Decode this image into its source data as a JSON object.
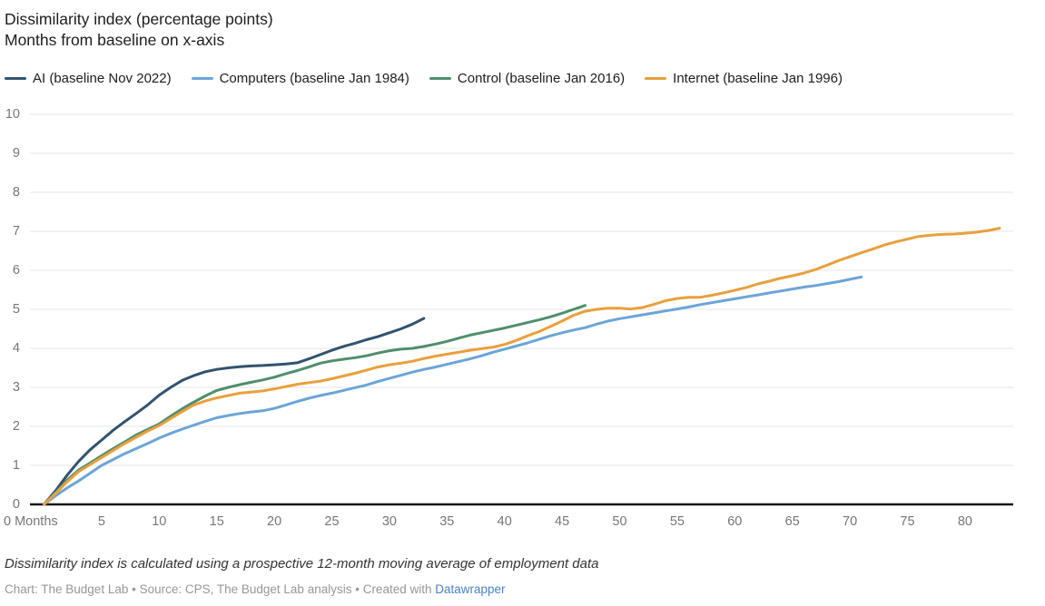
{
  "header": {
    "title": "Dissimilarity index (percentage points)",
    "subtitle": "Months from baseline on x-axis"
  },
  "footer": {
    "note": "Dissimilarity index is calculated using a prospective 12-month moving average of employment data",
    "credit_prefix": "Chart: The Budget Lab • Source: CPS, The Budget Lab analysis • Created with ",
    "credit_link": "Datawrapper"
  },
  "colors": {
    "axis": "#161616",
    "grid": "#e4e4e4",
    "tick_label": "#767676",
    "link": "#4a82c4"
  },
  "chart_data": {
    "type": "line",
    "title": "Dissimilarity index (percentage points)",
    "subtitle": "Months from baseline on x-axis",
    "xlabel": "Months from baseline",
    "ylabel": "Dissimilarity index (percentage points)",
    "ylim": [
      0,
      10
    ],
    "xlim": [
      0,
      84
    ],
    "yticks": [
      0,
      1,
      2,
      3,
      4,
      5,
      6,
      7,
      8,
      9,
      10
    ],
    "xticks": [
      0,
      5,
      10,
      15,
      20,
      25,
      30,
      35,
      40,
      45,
      50,
      55,
      60,
      65,
      70,
      75,
      80
    ],
    "xtick_zero_label": "0 Months",
    "grid": "horizontal",
    "legend_position": "top",
    "x_unit": "months from baseline; each series' values are at consecutive months 0,1,2,...",
    "series": [
      {
        "name": "AI (baseline Nov 2022)",
        "key": "ai",
        "color": "#31536e",
        "values": [
          0,
          0.35,
          0.75,
          1.1,
          1.4,
          1.65,
          1.9,
          2.12,
          2.33,
          2.55,
          2.8,
          3.0,
          3.18,
          3.3,
          3.4,
          3.46,
          3.5,
          3.53,
          3.55,
          3.56,
          3.58,
          3.6,
          3.63,
          3.73,
          3.84,
          3.95,
          4.05,
          4.13,
          4.22,
          4.3,
          4.4,
          4.5,
          4.62,
          4.77
        ]
      },
      {
        "name": "Computers (baseline Jan 1984)",
        "key": "computers",
        "color": "#6ba5d7",
        "values": [
          0,
          0.22,
          0.42,
          0.6,
          0.8,
          1.0,
          1.15,
          1.3,
          1.43,
          1.56,
          1.7,
          1.82,
          1.93,
          2.03,
          2.13,
          2.22,
          2.28,
          2.33,
          2.37,
          2.4,
          2.46,
          2.55,
          2.64,
          2.72,
          2.79,
          2.85,
          2.92,
          2.99,
          3.06,
          3.15,
          3.23,
          3.31,
          3.39,
          3.46,
          3.52,
          3.59,
          3.66,
          3.73,
          3.81,
          3.9,
          3.98,
          4.06,
          4.14,
          4.23,
          4.32,
          4.4,
          4.47,
          4.53,
          4.62,
          4.7,
          4.76,
          4.81,
          4.86,
          4.91,
          4.96,
          5.01,
          5.06,
          5.12,
          5.17,
          5.22,
          5.27,
          5.32,
          5.37,
          5.42,
          5.47,
          5.52,
          5.57,
          5.61,
          5.66,
          5.71,
          5.77,
          5.83
        ]
      },
      {
        "name": "Control (baseline Jan 2016)",
        "key": "control",
        "color": "#4f8f6b",
        "values": [
          0,
          0.3,
          0.62,
          0.88,
          1.06,
          1.25,
          1.43,
          1.6,
          1.78,
          1.92,
          2.06,
          2.26,
          2.45,
          2.62,
          2.78,
          2.92,
          3.0,
          3.07,
          3.13,
          3.19,
          3.26,
          3.35,
          3.43,
          3.52,
          3.62,
          3.68,
          3.72,
          3.76,
          3.81,
          3.88,
          3.94,
          3.98,
          4.0,
          4.05,
          4.11,
          4.18,
          4.26,
          4.34,
          4.4,
          4.46,
          4.52,
          4.59,
          4.66,
          4.73,
          4.81,
          4.9,
          5.0,
          5.1
        ]
      },
      {
        "name": "Internet (baseline Jan 1996)",
        "key": "internet",
        "color": "#e8a03c",
        "values": [
          0,
          0.28,
          0.58,
          0.84,
          1.02,
          1.2,
          1.38,
          1.56,
          1.72,
          1.88,
          2.02,
          2.2,
          2.38,
          2.55,
          2.65,
          2.73,
          2.79,
          2.85,
          2.88,
          2.91,
          2.96,
          3.02,
          3.08,
          3.12,
          3.16,
          3.22,
          3.29,
          3.36,
          3.44,
          3.52,
          3.58,
          3.62,
          3.67,
          3.74,
          3.8,
          3.85,
          3.9,
          3.95,
          3.99,
          4.03,
          4.1,
          4.2,
          4.32,
          4.43,
          4.56,
          4.7,
          4.85,
          4.95,
          5.0,
          5.03,
          5.03,
          5.01,
          5.05,
          5.13,
          5.22,
          5.28,
          5.31,
          5.31,
          5.36,
          5.42,
          5.49,
          5.56,
          5.65,
          5.72,
          5.8,
          5.86,
          5.93,
          6.02,
          6.13,
          6.25,
          6.35,
          6.45,
          6.55,
          6.65,
          6.73,
          6.8,
          6.87,
          6.9,
          6.92,
          6.93,
          6.95,
          6.98,
          7.02,
          7.08
        ]
      }
    ]
  }
}
